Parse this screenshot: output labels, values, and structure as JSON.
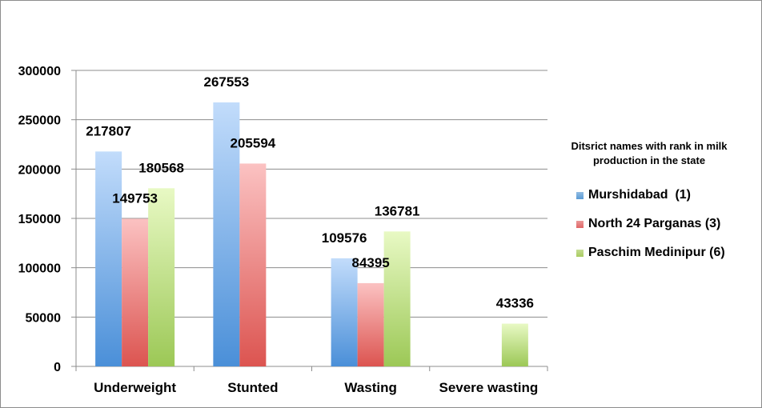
{
  "chart_data": {
    "type": "bar",
    "categories": [
      "Underweight",
      "Stunted",
      "Wasting",
      "Severe wasting"
    ],
    "series": [
      {
        "name": "Murshidabad  (1)",
        "values": [
          217807,
          267553,
          109576,
          null
        ],
        "color": "#5b9bd5"
      },
      {
        "name": "North 24 Parganas (3)",
        "values": [
          149753,
          205594,
          84395,
          null
        ],
        "color": "#e06666"
      },
      {
        "name": "Paschim Medinipur (6)",
        "values": [
          180568,
          null,
          136781,
          43336
        ],
        "color": "#a9cc60"
      }
    ],
    "data_labels": [
      [
        "217807",
        "267553",
        "109576",
        ""
      ],
      [
        "149753",
        "205594",
        "84395",
        ""
      ],
      [
        "180568",
        "",
        "136781",
        "43336"
      ]
    ],
    "yticks": [
      "0",
      "50000",
      "100000",
      "150000",
      "200000",
      "250000",
      "300000"
    ],
    "ylim": [
      0,
      300000
    ],
    "grid": true,
    "legend_title": "Ditsrict names with rank in milk production in the state",
    "legend_position": "right"
  }
}
